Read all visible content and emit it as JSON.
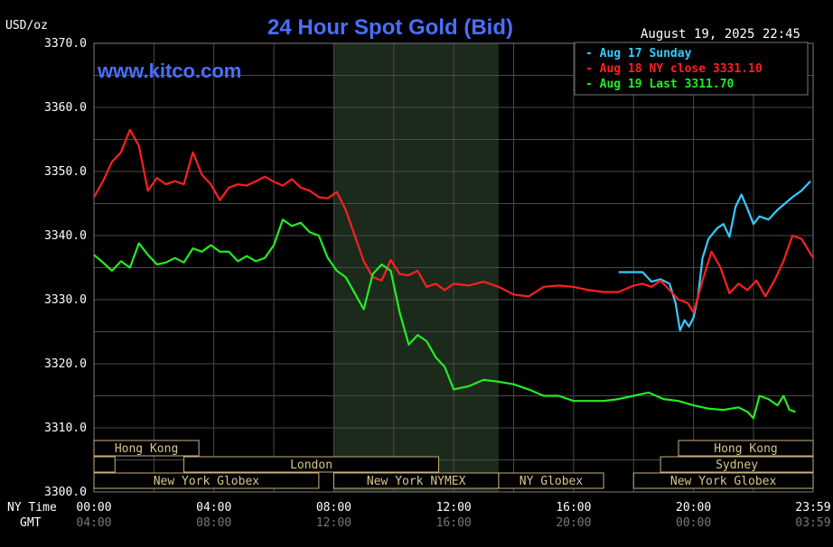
{
  "header": {
    "unit": "USD/oz",
    "title": "24 Hour Spot Gold (Bid)",
    "timestamp": "August 19, 2025 22:45",
    "watermark": "www.kitco.com"
  },
  "legend": [
    {
      "label": "Aug 17 Sunday",
      "color": "#33ccff"
    },
    {
      "label": "Aug 18 NY close 3331.10",
      "color": "#ff2020"
    },
    {
      "label": "Aug 19 Last 3311.70",
      "color": "#22ee22"
    }
  ],
  "axis": {
    "y_ticks": [
      "3370.0",
      "3360.0",
      "3350.0",
      "3340.0",
      "3330.0",
      "3320.0",
      "3310.0",
      "3300.0"
    ],
    "x_row1_label": "NY Time",
    "x_row2_label": "GMT",
    "ny_ticks": [
      "00:00",
      "04:00",
      "08:00",
      "12:00",
      "16:00",
      "20:00",
      "23:59"
    ],
    "gmt_ticks": [
      "04:00",
      "08:00",
      "12:00",
      "16:00",
      "20:00",
      "00:00",
      "03:59"
    ]
  },
  "sessions": [
    {
      "label": "Hong Kong",
      "row": 0,
      "start": 0,
      "end": 3.5
    },
    {
      "label": "",
      "row": 1,
      "start": 0,
      "end": 0.7
    },
    {
      "label": "London",
      "row": 1,
      "start": 3,
      "end": 11.5
    },
    {
      "label": "New York Globex",
      "row": 2,
      "start": 0,
      "end": 7.5
    },
    {
      "label": "New York NYMEX",
      "row": 2,
      "start": 8,
      "end": 13.5
    },
    {
      "label": "NY Globex",
      "row": 2,
      "start": 13.5,
      "end": 17
    },
    {
      "label": "Hong Kong",
      "row": 0,
      "start": 19.5,
      "end": 23.99
    },
    {
      "label": "Sydney",
      "row": 1,
      "start": 18.9,
      "end": 23.99
    },
    {
      "label": "New York Globex",
      "row": 2,
      "start": 18,
      "end": 23.99
    }
  ],
  "chart_data": {
    "type": "line",
    "title": "24 Hour Spot Gold (Bid)",
    "ylabel": "USD/oz",
    "ylim": [
      3300,
      3370
    ],
    "xlim_hours": [
      0,
      23.99
    ],
    "shaded_hours": [
      8,
      13.5
    ],
    "series": [
      {
        "name": "Aug 17 Sunday",
        "color": "#33ccff",
        "x": [
          17.5,
          18.3,
          18.6,
          18.9,
          19.2,
          19.4,
          19.55,
          19.7,
          19.85,
          20.0,
          20.15,
          20.3,
          20.5,
          20.8,
          21.0,
          21.2,
          21.4,
          21.6,
          21.8,
          22.0,
          22.2,
          22.5,
          22.8,
          23.0,
          23.3,
          23.6,
          23.9
        ],
        "y": [
          3334.3,
          3334.3,
          3332.8,
          3333.2,
          3332.5,
          3329.5,
          3325.2,
          3326.8,
          3325.8,
          3327.2,
          3330.5,
          3336.5,
          3339.5,
          3341.2,
          3341.8,
          3339.8,
          3344.5,
          3346.4,
          3344.2,
          3341.8,
          3343.0,
          3342.5,
          3344.0,
          3344.8,
          3346.0,
          3347.0,
          3348.5
        ]
      },
      {
        "name": "Aug 18 NY close 3331.10",
        "color": "#ff2020",
        "x": [
          0,
          0.3,
          0.6,
          0.9,
          1.2,
          1.5,
          1.8,
          2.1,
          2.4,
          2.7,
          3.0,
          3.3,
          3.6,
          3.9,
          4.2,
          4.5,
          4.8,
          5.1,
          5.4,
          5.7,
          6.0,
          6.3,
          6.6,
          6.9,
          7.2,
          7.5,
          7.8,
          8.1,
          8.4,
          8.7,
          9.0,
          9.3,
          9.6,
          9.9,
          10.2,
          10.5,
          10.8,
          11.1,
          11.4,
          11.7,
          12.0,
          12.5,
          13.0,
          13.5,
          14.0,
          14.5,
          15.0,
          15.5,
          16.0,
          16.5,
          17.0,
          17.5,
          18.0,
          18.3,
          18.6,
          18.9,
          19.2,
          19.5,
          19.8,
          20.0,
          20.3,
          20.6,
          20.9,
          21.2,
          21.5,
          21.8,
          22.1,
          22.4,
          22.7,
          23.0,
          23.3,
          23.6,
          23.99
        ],
        "y": [
          3346.0,
          3348.5,
          3351.5,
          3353.0,
          3356.5,
          3354.0,
          3347.0,
          3349.0,
          3348.0,
          3348.5,
          3348.0,
          3353.0,
          3349.5,
          3348.0,
          3345.5,
          3347.5,
          3348.0,
          3347.8,
          3348.5,
          3349.2,
          3348.4,
          3347.8,
          3348.8,
          3347.5,
          3347.0,
          3346.0,
          3345.8,
          3346.8,
          3344.0,
          3340.0,
          3336.0,
          3333.5,
          3333.0,
          3336.2,
          3334.0,
          3333.8,
          3334.5,
          3332.0,
          3332.5,
          3331.5,
          3332.5,
          3332.2,
          3332.8,
          3332.0,
          3330.8,
          3330.5,
          3332.0,
          3332.2,
          3332.0,
          3331.5,
          3331.2,
          3331.2,
          3332.2,
          3332.5,
          3332.0,
          3333.0,
          3331.5,
          3330.0,
          3329.5,
          3328.0,
          3333.0,
          3337.5,
          3335.0,
          3331.0,
          3332.5,
          3331.5,
          3333.0,
          3330.5,
          3333.0,
          3336.0,
          3340.0,
          3339.5,
          3336.5
        ]
      },
      {
        "name": "Aug 19 Last 3311.70",
        "color": "#22ee22",
        "x": [
          0,
          0.3,
          0.6,
          0.9,
          1.2,
          1.5,
          1.8,
          2.1,
          2.4,
          2.7,
          3.0,
          3.3,
          3.6,
          3.9,
          4.2,
          4.5,
          4.8,
          5.1,
          5.4,
          5.7,
          6.0,
          6.3,
          6.6,
          6.9,
          7.2,
          7.5,
          7.8,
          8.1,
          8.4,
          8.7,
          9.0,
          9.3,
          9.6,
          9.9,
          10.2,
          10.5,
          10.8,
          11.1,
          11.4,
          11.7,
          12.0,
          12.5,
          13.0,
          13.5,
          14.0,
          14.5,
          15.0,
          15.5,
          16.0,
          16.5,
          17.0,
          17.5,
          18.0,
          18.5,
          19.0,
          19.5,
          20.0,
          20.5,
          21.0,
          21.5,
          21.8,
          22.0,
          22.2,
          22.5,
          22.8,
          23.0,
          23.2,
          23.4
        ],
        "y": [
          3337.0,
          3335.8,
          3334.5,
          3336.0,
          3335.0,
          3338.8,
          3337.0,
          3335.5,
          3335.8,
          3336.5,
          3335.8,
          3338.0,
          3337.5,
          3338.5,
          3337.5,
          3337.5,
          3336.0,
          3336.8,
          3336.0,
          3336.5,
          3338.5,
          3342.5,
          3341.5,
          3342.0,
          3340.5,
          3340.0,
          3336.5,
          3334.5,
          3333.5,
          3331.0,
          3328.5,
          3334.0,
          3335.5,
          3334.5,
          3328.0,
          3323.0,
          3324.5,
          3323.5,
          3321.0,
          3319.5,
          3316.0,
          3316.5,
          3317.5,
          3317.2,
          3316.8,
          3316.0,
          3315.0,
          3315.0,
          3314.2,
          3314.2,
          3314.2,
          3314.5,
          3315.0,
          3315.5,
          3314.5,
          3314.2,
          3313.5,
          3313.0,
          3312.8,
          3313.2,
          3312.5,
          3311.5,
          3315.0,
          3314.5,
          3313.5,
          3315.0,
          3312.8,
          3312.5
        ]
      }
    ]
  }
}
